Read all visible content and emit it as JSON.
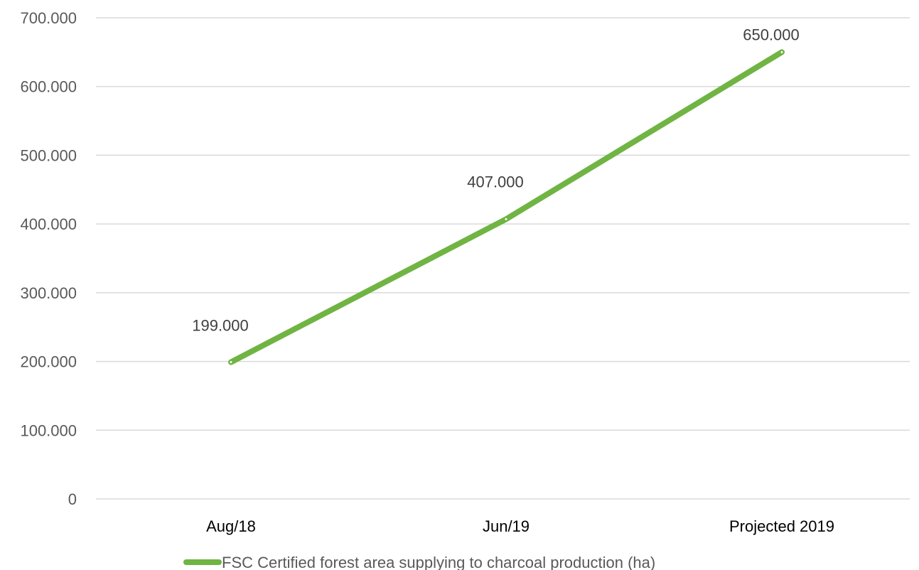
{
  "chart_data": {
    "type": "line",
    "categories": [
      "Aug/18",
      "Jun/19",
      "Projected 2019"
    ],
    "series": [
      {
        "name": "FSC Certified forest area supplying to charcoal production (ha)",
        "values": [
          199000,
          407000,
          650000
        ],
        "color": "#70b443"
      }
    ],
    "data_labels": [
      "199.000",
      "407.000",
      "650.000"
    ],
    "ylim": [
      0,
      700000
    ],
    "y_ticks": [
      0,
      100000,
      200000,
      300000,
      400000,
      500000,
      600000,
      700000
    ],
    "y_tick_labels": [
      "0",
      "100.000",
      "200.000",
      "300.000",
      "400.000",
      "500.000",
      "600.000",
      "700.000"
    ],
    "grid": true,
    "legend_position": "bottom",
    "title": "",
    "xlabel": "",
    "ylabel": ""
  }
}
